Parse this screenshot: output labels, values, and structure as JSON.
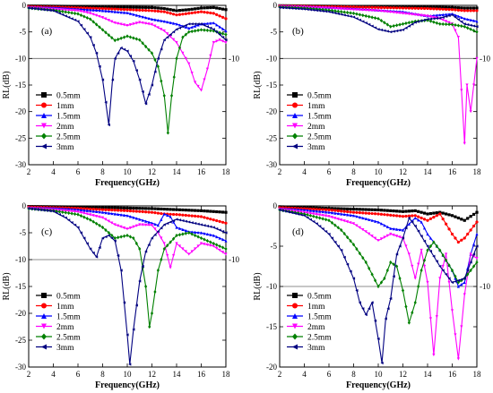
{
  "chart_data": [
    {
      "type": "line",
      "panel_label": "(a)",
      "xlabel": "Frequency(GHz)",
      "ylabel": "RL(dB)",
      "xlim": [
        2,
        18
      ],
      "ylim": [
        -30,
        0
      ],
      "xticks": [
        2,
        4,
        6,
        8,
        10,
        12,
        14,
        16,
        18
      ],
      "yticks": [
        0,
        -5,
        -10,
        -15,
        -20,
        -25,
        -30
      ],
      "reference_line": -10,
      "reference_label": "-10",
      "legend_position": "bottom-left",
      "series": [
        {
          "name": "0.5mm",
          "color": "#000000",
          "marker": "square",
          "x": [
            2,
            4,
            6,
            8,
            10,
            12,
            13,
            14,
            15,
            16,
            17,
            18
          ],
          "y": [
            -0.1,
            -0.15,
            -0.2,
            -0.3,
            -0.35,
            -0.4,
            -0.6,
            -1.0,
            -0.8,
            -0.5,
            -0.4,
            -0.8
          ]
        },
        {
          "name": "1mm",
          "color": "#ff0000",
          "marker": "circle",
          "x": [
            2,
            4,
            6,
            8,
            10,
            12,
            13,
            14,
            15,
            16,
            17,
            18
          ],
          "y": [
            -0.2,
            -0.3,
            -0.45,
            -0.6,
            -0.8,
            -1.0,
            -1.2,
            -1.8,
            -1.5,
            -1.2,
            -1.5,
            -2.5
          ]
        },
        {
          "name": "1.5mm",
          "color": "#0000ff",
          "marker": "triangle-up",
          "x": [
            2,
            4,
            6,
            8,
            10,
            11,
            12,
            13,
            14,
            15,
            16,
            17,
            18
          ],
          "y": [
            -0.3,
            -0.4,
            -0.7,
            -1.0,
            -1.4,
            -2.0,
            -2.6,
            -3.0,
            -3.5,
            -4.3,
            -3.5,
            -3.3,
            -4.8
          ]
        },
        {
          "name": "2mm",
          "color": "#ff00ff",
          "marker": "triangle-down",
          "x": [
            2,
            4,
            6,
            7,
            8,
            9,
            10,
            11,
            12,
            13,
            14,
            15,
            15.5,
            16,
            16.5,
            17,
            17.5,
            18
          ],
          "y": [
            -0.4,
            -0.7,
            -1.0,
            -1.5,
            -2.3,
            -3.3,
            -3.8,
            -3.2,
            -3.6,
            -4.8,
            -7.0,
            -11.0,
            -14.5,
            -16.0,
            -12.0,
            -7.0,
            -6.5,
            -7.0
          ]
        },
        {
          "name": "2.5mm",
          "color": "#008000",
          "marker": "diamond",
          "x": [
            2,
            4,
            6,
            7,
            8,
            9,
            10,
            11,
            12,
            12.5,
            13,
            13.3,
            13.6,
            14,
            14.5,
            15,
            16,
            17,
            18
          ],
          "y": [
            -0.5,
            -0.9,
            -1.6,
            -2.6,
            -4.6,
            -6.6,
            -5.8,
            -6.5,
            -9.0,
            -11.5,
            -17.0,
            -24.0,
            -17.0,
            -10.0,
            -6.0,
            -5.0,
            -4.6,
            -4.8,
            -5.5
          ]
        },
        {
          "name": "3mm",
          "color": "#000080",
          "marker": "triangle-left",
          "x": [
            2,
            4,
            5,
            6,
            7,
            7.5,
            8,
            8.5,
            8.8,
            9,
            9.5,
            10,
            10.5,
            11,
            11.5,
            12,
            12.5,
            13,
            14,
            15,
            16,
            17,
            18
          ],
          "y": [
            -0.5,
            -1.0,
            -2.0,
            -3.0,
            -6.0,
            -9.0,
            -14.0,
            -22.5,
            -14.0,
            -10.0,
            -8.0,
            -8.6,
            -10.5,
            -14.0,
            -18.5,
            -15.0,
            -10.0,
            -6.5,
            -4.5,
            -3.5,
            -3.5,
            -4.5,
            -6.5
          ]
        }
      ]
    },
    {
      "type": "line",
      "panel_label": "(b)",
      "xlabel": "Frequency(GHz)",
      "ylabel": "RL(dB)",
      "xlim": [
        2,
        18
      ],
      "ylim": [
        -30,
        0
      ],
      "xticks": [
        2,
        4,
        6,
        8,
        10,
        12,
        14,
        16,
        18
      ],
      "yticks": [
        0,
        -5,
        -10,
        -15,
        -20,
        -25,
        -30
      ],
      "reference_line": -10,
      "reference_label": "-10",
      "legend_position": "bottom-left",
      "series": [
        {
          "name": "0.5mm",
          "color": "#000000",
          "marker": "square",
          "x": [
            2,
            4,
            6,
            8,
            10,
            12,
            14,
            16,
            17,
            18
          ],
          "y": [
            -0.05,
            -0.1,
            -0.15,
            -0.2,
            -0.3,
            -0.3,
            -0.3,
            -0.4,
            -0.5,
            -0.5
          ]
        },
        {
          "name": "1mm",
          "color": "#ff0000",
          "marker": "circle",
          "x": [
            2,
            4,
            6,
            8,
            10,
            12,
            14,
            16,
            17,
            18
          ],
          "y": [
            -0.1,
            -0.15,
            -0.25,
            -0.3,
            -0.4,
            -0.5,
            -0.6,
            -0.8,
            -1.0,
            -1.0
          ]
        },
        {
          "name": "1.5mm",
          "color": "#0000ff",
          "marker": "triangle-up",
          "x": [
            2,
            4,
            6,
            8,
            10,
            12,
            13,
            14,
            15,
            16,
            17,
            18
          ],
          "y": [
            -0.15,
            -0.25,
            -0.4,
            -0.6,
            -0.9,
            -1.2,
            -1.6,
            -2.0,
            -1.8,
            -1.6,
            -2.5,
            -3.0
          ]
        },
        {
          "name": "2mm",
          "color": "#ff00ff",
          "marker": "triangle-down",
          "x": [
            2,
            4,
            6,
            8,
            10,
            12,
            14,
            15,
            16,
            16.5,
            17,
            17.2,
            17.5,
            18
          ],
          "y": [
            -0.2,
            -0.3,
            -0.5,
            -0.8,
            -1.0,
            -1.5,
            -2.0,
            -2.5,
            -3.5,
            -6.0,
            -26.0,
            -15.0,
            -20.0,
            -10.0
          ]
        },
        {
          "name": "2.5mm",
          "color": "#008000",
          "marker": "diamond",
          "x": [
            2,
            4,
            6,
            8,
            10,
            11,
            12,
            13,
            14,
            15,
            16,
            17,
            18
          ],
          "y": [
            -0.3,
            -0.5,
            -0.9,
            -1.5,
            -2.5,
            -4.0,
            -3.5,
            -3.0,
            -2.8,
            -3.5,
            -3.6,
            -4.0,
            -5.0
          ]
        },
        {
          "name": "3mm",
          "color": "#000080",
          "marker": "triangle-left",
          "x": [
            2,
            4,
            6,
            8,
            9,
            10,
            11,
            12,
            13,
            14,
            15,
            16,
            17,
            18
          ],
          "y": [
            -0.4,
            -0.7,
            -1.2,
            -2.2,
            -3.3,
            -4.5,
            -5.0,
            -4.6,
            -3.2,
            -2.6,
            -2.4,
            -1.8,
            -3.5,
            -4.0
          ]
        }
      ]
    },
    {
      "type": "line",
      "panel_label": "(c)",
      "xlabel": "Frequency(GHz)",
      "ylabel": "RL(dB)",
      "xlim": [
        2,
        18
      ],
      "ylim": [
        -30,
        0
      ],
      "xticks": [
        2,
        4,
        6,
        8,
        10,
        12,
        14,
        16,
        18
      ],
      "yticks": [
        0,
        -5,
        -10,
        -15,
        -20,
        -25,
        -30
      ],
      "reference_line": -10,
      "reference_label": "-10",
      "legend_position": "bottom-left",
      "series": [
        {
          "name": "0.5mm",
          "color": "#000000",
          "marker": "square",
          "x": [
            2,
            4,
            6,
            8,
            10,
            12,
            14,
            16,
            18
          ],
          "y": [
            -0.1,
            -0.15,
            -0.2,
            -0.3,
            -0.4,
            -0.5,
            -0.7,
            -0.9,
            -1.2
          ]
        },
        {
          "name": "1mm",
          "color": "#ff0000",
          "marker": "circle",
          "x": [
            2,
            4,
            6,
            8,
            10,
            12,
            13,
            14,
            15,
            16,
            17,
            18
          ],
          "y": [
            -0.2,
            -0.3,
            -0.45,
            -0.7,
            -0.9,
            -1.2,
            -1.5,
            -1.6,
            -1.8,
            -2.0,
            -2.6,
            -3.2
          ]
        },
        {
          "name": "1.5mm",
          "color": "#0000ff",
          "marker": "triangle-up",
          "x": [
            2,
            4,
            6,
            8,
            10,
            11,
            12,
            12.5,
            13,
            13.5,
            14,
            15,
            16,
            17,
            18
          ],
          "y": [
            -0.3,
            -0.4,
            -0.7,
            -1.2,
            -1.8,
            -2.5,
            -3.2,
            -3.6,
            -1.5,
            -2.0,
            -4.0,
            -4.8,
            -5.0,
            -5.5,
            -6.5
          ]
        },
        {
          "name": "2mm",
          "color": "#ff00ff",
          "marker": "triangle-down",
          "x": [
            2,
            4,
            6,
            8,
            9,
            10,
            11,
            12,
            12.5,
            13,
            13.5,
            14,
            15,
            16,
            17,
            18
          ],
          "y": [
            -0.4,
            -0.7,
            -1.1,
            -2.2,
            -3.5,
            -4.3,
            -3.5,
            -3.6,
            -5.0,
            -7.0,
            -11.5,
            -7.0,
            -9.0,
            -7.0,
            -7.5,
            -9.0
          ]
        },
        {
          "name": "2.5mm",
          "color": "#008000",
          "marker": "diamond",
          "x": [
            2,
            4,
            6,
            7,
            8,
            9,
            10,
            10.5,
            11,
            11.5,
            11.8,
            12,
            12.5,
            13,
            14,
            15,
            16,
            17,
            18
          ],
          "y": [
            -0.5,
            -0.9,
            -1.6,
            -2.6,
            -4.0,
            -6.0,
            -5.5,
            -6.0,
            -8.0,
            -15.0,
            -22.5,
            -20.0,
            -12.0,
            -8.0,
            -5.5,
            -5.0,
            -6.0,
            -7.0,
            -8.0
          ]
        },
        {
          "name": "3mm",
          "color": "#000080",
          "marker": "triangle-left",
          "x": [
            2,
            4,
            5,
            6,
            7,
            7.5,
            8,
            8.5,
            9,
            9.5,
            10,
            10.2,
            10.5,
            11,
            11.5,
            12,
            13,
            14,
            15,
            16,
            17,
            18
          ],
          "y": [
            -0.5,
            -1.0,
            -2.2,
            -4.0,
            -8.0,
            -9.5,
            -6.0,
            -5.5,
            -6.5,
            -12.0,
            -24.0,
            -29.5,
            -23.0,
            -14.0,
            -8.5,
            -6.0,
            -3.5,
            -2.5,
            -3.0,
            -3.5,
            -4.0,
            -5.0
          ]
        }
      ]
    },
    {
      "type": "line",
      "panel_label": "(d)",
      "xlabel": "Frequency(GHz)",
      "ylabel": "RL(dB)",
      "xlim": [
        2,
        18
      ],
      "ylim": [
        -20,
        0
      ],
      "xticks": [
        2,
        4,
        6,
        8,
        10,
        12,
        14,
        16,
        18
      ],
      "yticks": [
        0,
        -5,
        -10,
        -15,
        -20
      ],
      "reference_line": -10,
      "reference_label": "-10",
      "legend_position": "bottom-left",
      "series": [
        {
          "name": "0.5mm",
          "color": "#000000",
          "marker": "square",
          "x": [
            2,
            4,
            6,
            8,
            10,
            12,
            13,
            14,
            15,
            16,
            17,
            18
          ],
          "y": [
            -0.1,
            -0.2,
            -0.3,
            -0.4,
            -0.5,
            -0.7,
            -0.6,
            -1.0,
            -0.8,
            -1.2,
            -1.8,
            -0.8
          ]
        },
        {
          "name": "1mm",
          "color": "#ff0000",
          "marker": "circle",
          "x": [
            2,
            4,
            6,
            8,
            10,
            12,
            13,
            14,
            15,
            16,
            16.5,
            17,
            18
          ],
          "y": [
            -0.2,
            -0.35,
            -0.5,
            -0.8,
            -1.0,
            -1.3,
            -1.2,
            -1.8,
            -1.0,
            -3.5,
            -4.5,
            -4.0,
            -2.0
          ]
        },
        {
          "name": "1.5mm",
          "color": "#0000ff",
          "marker": "triangle-up",
          "x": [
            2,
            4,
            6,
            8,
            10,
            11,
            12,
            13,
            13.5,
            14,
            15,
            16,
            16.5,
            17,
            17.5,
            18
          ],
          "y": [
            -0.3,
            -0.5,
            -0.8,
            -1.2,
            -2.0,
            -2.8,
            -3.0,
            -1.5,
            -2.0,
            -3.5,
            -5.5,
            -8.0,
            -10.0,
            -9.5,
            -6.0,
            -3.5
          ]
        },
        {
          "name": "2mm",
          "color": "#ff00ff",
          "marker": "triangle-down",
          "x": [
            2,
            4,
            6,
            8,
            9,
            10,
            11,
            12,
            12.5,
            13,
            13.5,
            14,
            14.5,
            15,
            15.5,
            16,
            16.5,
            17,
            17.5,
            18
          ],
          "y": [
            -0.4,
            -0.8,
            -1.3,
            -2.2,
            -3.2,
            -4.3,
            -3.5,
            -4.0,
            -6.0,
            -9.0,
            -5.5,
            -9.5,
            -18.5,
            -9.0,
            -6.0,
            -13.0,
            -19.0,
            -11.0,
            -6.0,
            -6.5
          ]
        },
        {
          "name": "2.5mm",
          "color": "#008000",
          "marker": "diamond",
          "x": [
            2,
            4,
            6,
            7,
            8,
            9,
            10,
            10.5,
            11,
            11.5,
            12,
            12.5,
            13,
            13.5,
            14,
            14.5,
            15,
            16,
            16.5,
            17,
            18
          ],
          "y": [
            -0.5,
            -1.0,
            -1.8,
            -3.0,
            -4.8,
            -7.0,
            -10.0,
            -9.0,
            -7.0,
            -7.5,
            -10.5,
            -14.5,
            -12.0,
            -8.0,
            -5.5,
            -4.5,
            -5.5,
            -8.0,
            -9.5,
            -9.0,
            -7.0
          ]
        },
        {
          "name": "3mm",
          "color": "#000080",
          "marker": "triangle-left",
          "x": [
            2,
            4,
            5,
            6,
            7,
            8,
            8.5,
            9,
            9.5,
            10,
            10.3,
            10.6,
            11,
            11.5,
            12,
            12.5,
            13,
            14,
            15,
            16,
            17,
            18
          ],
          "y": [
            -0.5,
            -1.2,
            -2.2,
            -3.5,
            -5.5,
            -9.0,
            -12.0,
            -13.5,
            -12.0,
            -16.5,
            -19.5,
            -14.0,
            -11.5,
            -6.0,
            -4.0,
            -1.5,
            -2.5,
            -5.0,
            -7.5,
            -9.5,
            -9.0,
            -5.0
          ]
        }
      ]
    }
  ]
}
